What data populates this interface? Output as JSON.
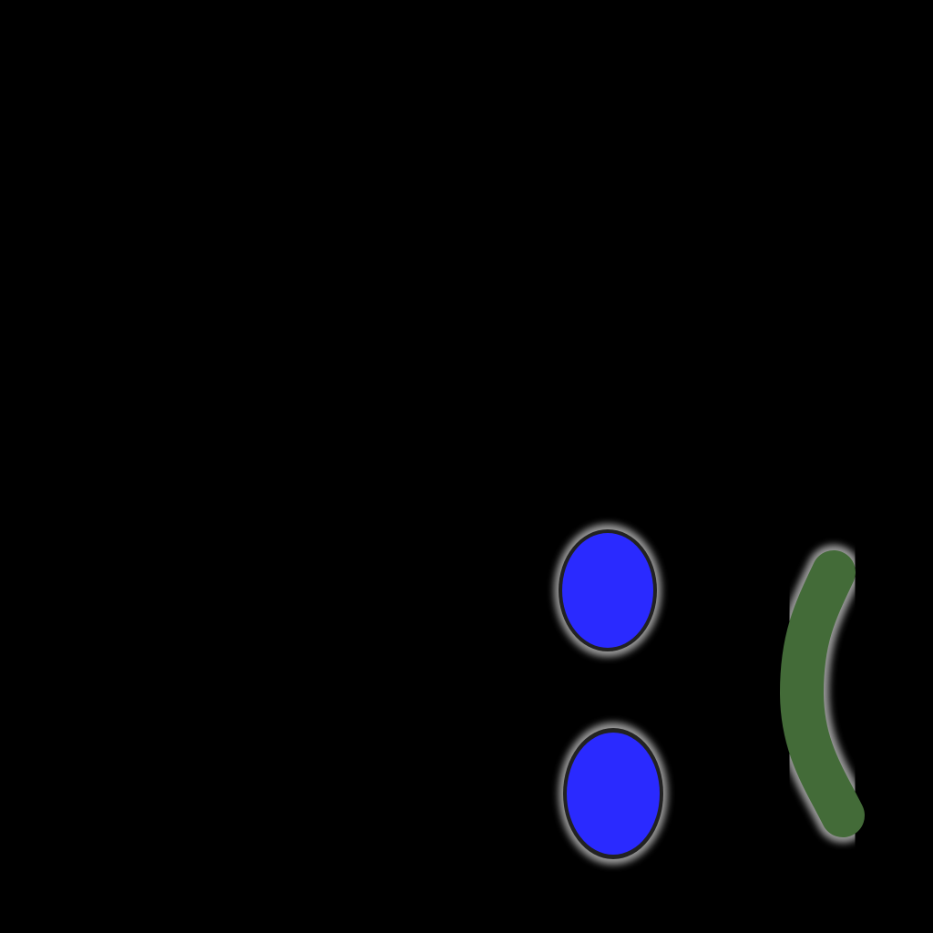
{
  "canvas": {
    "background_color": "#000000"
  },
  "shapes": [
    {
      "name": "upper-blue-ellipse",
      "kind": "ellipse",
      "fill": "#2a2aff",
      "outline": "#222222",
      "glow": "#9a9a9a"
    },
    {
      "name": "lower-blue-ellipse",
      "kind": "ellipse",
      "fill": "#2a2aff",
      "outline": "#222222",
      "glow": "#9a9a9a"
    },
    {
      "name": "green-arc-stroke",
      "kind": "curved-stroke",
      "fill": "#436b38",
      "glow": "#9a9a9a"
    }
  ]
}
